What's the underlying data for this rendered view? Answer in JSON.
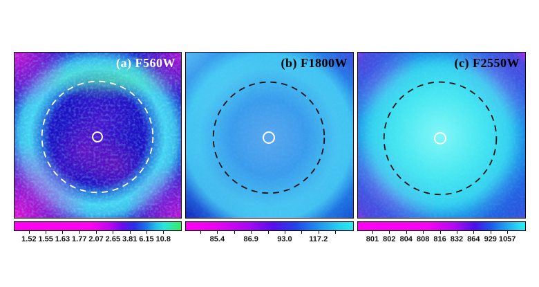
{
  "figure": {
    "description": "Three-panel false-color astronomical image figure with per-panel colorbars",
    "background_color": "#ffffff",
    "panels": [
      {
        "label": "(a) F560W",
        "label_color": "#ffffff",
        "dashed_circle_color": "#ffffff",
        "center_circle_color": "#ffffff",
        "colorbar": {
          "gradient_stops": [
            "#fb02f0 0%",
            "#fa05ee 46%",
            "#c007f0 57%",
            "#6a0cee 65%",
            "#2a2fe8 72%",
            "#1b74e8 79%",
            "#22c0ea 85%",
            "#2ae4d8 90%",
            "#2fe9a0 95%",
            "#38ea62 100%"
          ],
          "tick_positions": [
            9,
            19,
            29,
            39,
            49,
            59,
            69,
            79,
            89
          ],
          "tick_labels": [
            "1.52",
            "1.55",
            "1.63",
            "1.77",
            "2.07",
            "2.65",
            "3.81",
            "6.15",
            "10.8"
          ]
        }
      },
      {
        "label": "(b) F1800W",
        "label_color": "#000000",
        "dashed_circle_color": "#000000",
        "center_circle_color": "#ffffff",
        "colorbar": {
          "gradient_stops": [
            "#fb02f2 0%",
            "#e805f0 18%",
            "#a50af0 38%",
            "#5a0dee 52%",
            "#2345ea 66%",
            "#1e8cec 78%",
            "#27d2f0 92%",
            "#2ae9f2 100%"
          ],
          "tick_positions": [
            9,
            19,
            29,
            39,
            49,
            59,
            69,
            79,
            89
          ],
          "tick_labels": [
            "",
            "85.4",
            "",
            "86.9",
            "",
            "93.0",
            "",
            "117.2",
            ""
          ]
        }
      },
      {
        "label": "(c) F2550W",
        "label_color": "#000000",
        "dashed_circle_color": "#000000",
        "center_circle_color": "#ffffff",
        "colorbar": {
          "gradient_stops": [
            "#fb02f2 0%",
            "#f504f2 42%",
            "#b00af0 58%",
            "#4a10ea 70%",
            "#1d55ea 79%",
            "#1f9eee 88%",
            "#2adff2 97%",
            "#2cecf4 100%"
          ],
          "tick_positions": [
            9,
            19,
            29,
            39,
            49,
            59,
            69,
            79,
            89
          ],
          "tick_labels": [
            "801",
            "802",
            "804",
            "808",
            "816",
            "832",
            "864",
            "929",
            "1057"
          ]
        }
      }
    ]
  }
}
